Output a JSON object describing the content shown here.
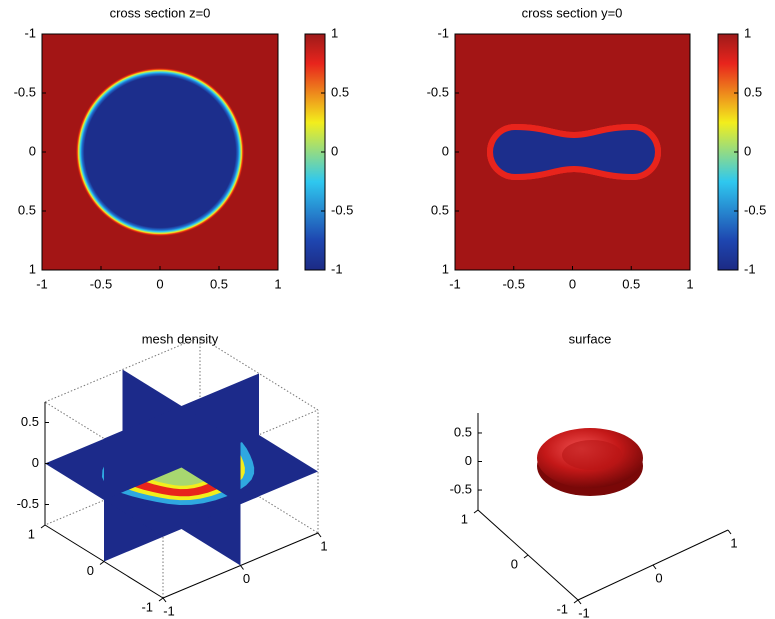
{
  "chart_data": [
    {
      "type": "heatmap",
      "title": "cross section z=0",
      "xlim": [
        -1,
        1
      ],
      "ylim": [
        -1,
        1
      ],
      "y_reversed": true,
      "xticks": [
        -1,
        -0.5,
        0,
        0.5,
        1
      ],
      "yticks": [
        -1,
        -0.5,
        0,
        0.5,
        1
      ],
      "colorbar": {
        "lim": [
          -1,
          1
        ],
        "ticks": [
          -1,
          -0.5,
          0,
          0.5,
          1
        ]
      }
    },
    {
      "type": "heatmap",
      "title": "cross section y=0",
      "xlim": [
        -1,
        1
      ],
      "ylim": [
        -1,
        1
      ],
      "y_reversed": true,
      "xticks": [
        -1,
        -0.5,
        0,
        0.5,
        1
      ],
      "yticks": [
        -1,
        -0.5,
        0,
        0.5,
        1
      ],
      "colorbar": {
        "lim": [
          -1,
          1
        ],
        "ticks": [
          -1,
          -0.5,
          0,
          0.5,
          1
        ]
      }
    },
    {
      "type": "slice3d",
      "title": "mesh density",
      "xlim": [
        -1,
        1
      ],
      "ylim": [
        -1,
        1
      ],
      "zlim": [
        -0.75,
        0.75
      ],
      "xticks": [
        -1,
        0,
        1
      ],
      "yticks": [
        -1,
        0,
        1
      ],
      "zticks": [
        -0.5,
        0,
        0.5
      ],
      "box": true
    },
    {
      "type": "surface3d",
      "title": "surface",
      "xlim": [
        -1,
        1
      ],
      "ylim": [
        -1,
        1
      ],
      "zlim": [
        -0.85,
        0.85
      ],
      "xticks": [
        -1,
        0,
        1
      ],
      "yticks": [
        -1,
        0,
        1
      ],
      "zticks": [
        -0.5,
        0,
        0.5
      ],
      "box": false
    }
  ]
}
